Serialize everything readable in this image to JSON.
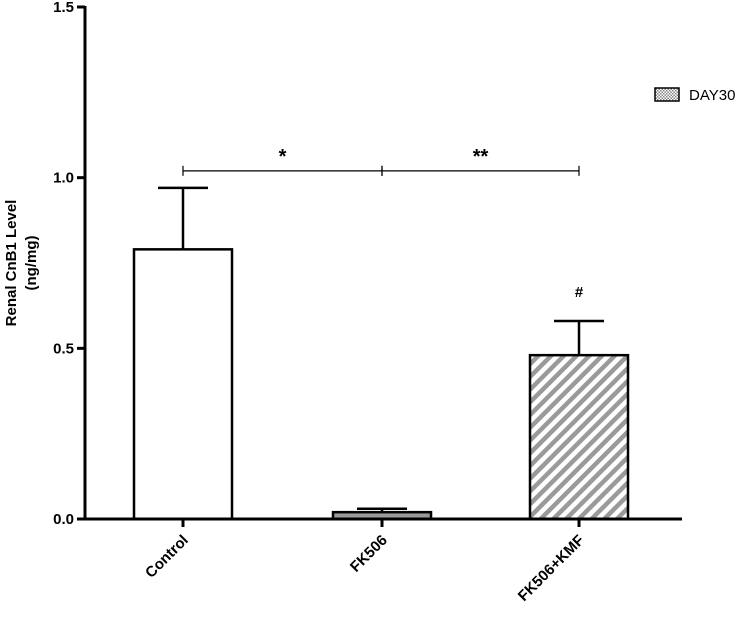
{
  "chart_data": {
    "type": "bar",
    "categories": [
      "Control",
      "FK506",
      "FK506+KMF"
    ],
    "values": [
      0.79,
      0.02,
      0.48
    ],
    "error_upper": [
      0.97,
      0.03,
      0.58
    ],
    "bar_styles": [
      "white",
      "gray",
      "hatched"
    ],
    "ylabel_line1": "Renal CnB1 Level",
    "ylabel_line2": "(ng/mg)",
    "ylim": [
      0.0,
      1.5
    ],
    "yticks": [
      "0.0",
      "0.5",
      "1.0",
      "1.5"
    ],
    "ytick_values": [
      0.0,
      0.5,
      1.0,
      1.5
    ],
    "legend": {
      "label": "DAY30",
      "placement": "top-right"
    },
    "significance": [
      {
        "from": 0,
        "to": 1,
        "label": "*",
        "y": 1.02
      },
      {
        "from": 1,
        "to": 2,
        "label": "**",
        "y": 1.02
      }
    ],
    "annotations": [
      {
        "category": 2,
        "label": "#"
      }
    ],
    "grid": false
  }
}
